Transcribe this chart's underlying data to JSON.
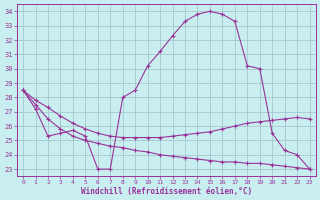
{
  "bg_color": "#c8eef0",
  "line_color": "#993399",
  "grid_color": "#a0c0c8",
  "xlabel": "Windchill (Refroidissement éolien,°C)",
  "ylim": [
    22.5,
    34.5
  ],
  "xlim": [
    -0.5,
    23.5
  ],
  "yticks": [
    23,
    24,
    25,
    26,
    27,
    28,
    29,
    30,
    31,
    32,
    33,
    34
  ],
  "xticks": [
    0,
    1,
    2,
    3,
    4,
    5,
    6,
    7,
    8,
    9,
    10,
    11,
    12,
    13,
    14,
    15,
    16,
    17,
    18,
    19,
    20,
    21,
    22,
    23
  ],
  "curve1_x": [
    0,
    1,
    2,
    3,
    4,
    5,
    6,
    7,
    8,
    9,
    10,
    11,
    12,
    13,
    14,
    15,
    16,
    17,
    18,
    19,
    20,
    21,
    22,
    23
  ],
  "curve1_y": [
    28.5,
    27.2,
    25.3,
    25.5,
    25.7,
    25.3,
    23.0,
    23.0,
    28.0,
    28.5,
    30.2,
    31.2,
    32.3,
    33.3,
    33.8,
    34.0,
    33.8,
    33.3,
    30.2,
    30.0,
    25.5,
    24.3,
    24.0,
    23.0
  ],
  "curve2_x": [
    0,
    1,
    2,
    3,
    4,
    5,
    6,
    7,
    8,
    9,
    10,
    11,
    12,
    13,
    14,
    15,
    16,
    17,
    18,
    19,
    20,
    21,
    22,
    23
  ],
  "curve2_y": [
    28.5,
    27.8,
    27.3,
    26.7,
    26.2,
    25.8,
    25.5,
    25.3,
    25.2,
    25.2,
    25.2,
    25.2,
    25.3,
    25.4,
    25.5,
    25.6,
    25.8,
    26.0,
    26.2,
    26.3,
    26.4,
    26.5,
    26.6,
    26.5
  ],
  "curve3_x": [
    0,
    1,
    2,
    3,
    4,
    5,
    6,
    7,
    8,
    9,
    10,
    11,
    12,
    13,
    14,
    15,
    16,
    17,
    18,
    19,
    20,
    21,
    22,
    23
  ],
  "curve3_y": [
    28.5,
    27.5,
    26.5,
    25.8,
    25.3,
    25.0,
    24.8,
    24.6,
    24.5,
    24.3,
    24.2,
    24.0,
    23.9,
    23.8,
    23.7,
    23.6,
    23.5,
    23.5,
    23.4,
    23.4,
    23.3,
    23.2,
    23.1,
    23.0
  ]
}
